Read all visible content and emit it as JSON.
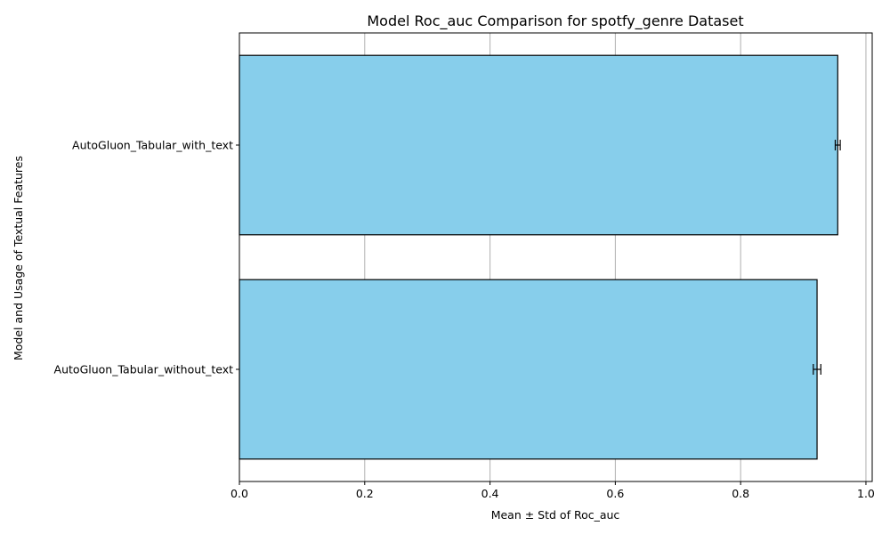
{
  "chart_data": {
    "type": "bar",
    "orientation": "horizontal",
    "title": "Model Roc_auc Comparison for spotfy_genre Dataset",
    "xlabel": "Mean ± Std of Roc_auc",
    "ylabel": "Model and Usage of Textual Features",
    "categories": [
      "AutoGluon_Tabular_with_text",
      "AutoGluon_Tabular_without_text"
    ],
    "values": [
      0.955,
      0.922
    ],
    "errors": [
      0.004,
      0.006
    ],
    "xlim": [
      0,
      1.01
    ],
    "xticks": [
      "0.0",
      "0.2",
      "0.4",
      "0.6",
      "0.8",
      "1.0"
    ],
    "grid": "x",
    "colors": {
      "bar": "#87ceeb",
      "edge": "#000000",
      "grid": "#b0b0b0"
    }
  }
}
